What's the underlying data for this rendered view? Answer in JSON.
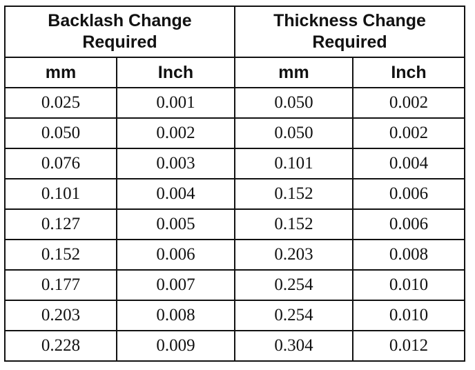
{
  "table": {
    "group_headers": [
      {
        "line1": "Backlash Change",
        "line2": "Required"
      },
      {
        "line1": "Thickness Change",
        "line2": "Required"
      }
    ],
    "unit_headers": [
      "mm",
      "Inch",
      "mm",
      "Inch"
    ],
    "rows": [
      [
        "0.025",
        "0.001",
        "0.050",
        "0.002"
      ],
      [
        "0.050",
        "0.002",
        "0.050",
        "0.002"
      ],
      [
        "0.076",
        "0.003",
        "0.101",
        "0.004"
      ],
      [
        "0.101",
        "0.004",
        "0.152",
        "0.006"
      ],
      [
        "0.127",
        "0.005",
        "0.152",
        "0.006"
      ],
      [
        "0.152",
        "0.006",
        "0.203",
        "0.008"
      ],
      [
        "0.177",
        "0.007",
        "0.254",
        "0.010"
      ],
      [
        "0.203",
        "0.008",
        "0.254",
        "0.010"
      ],
      [
        "0.228",
        "0.009",
        "0.304",
        "0.012"
      ]
    ]
  }
}
